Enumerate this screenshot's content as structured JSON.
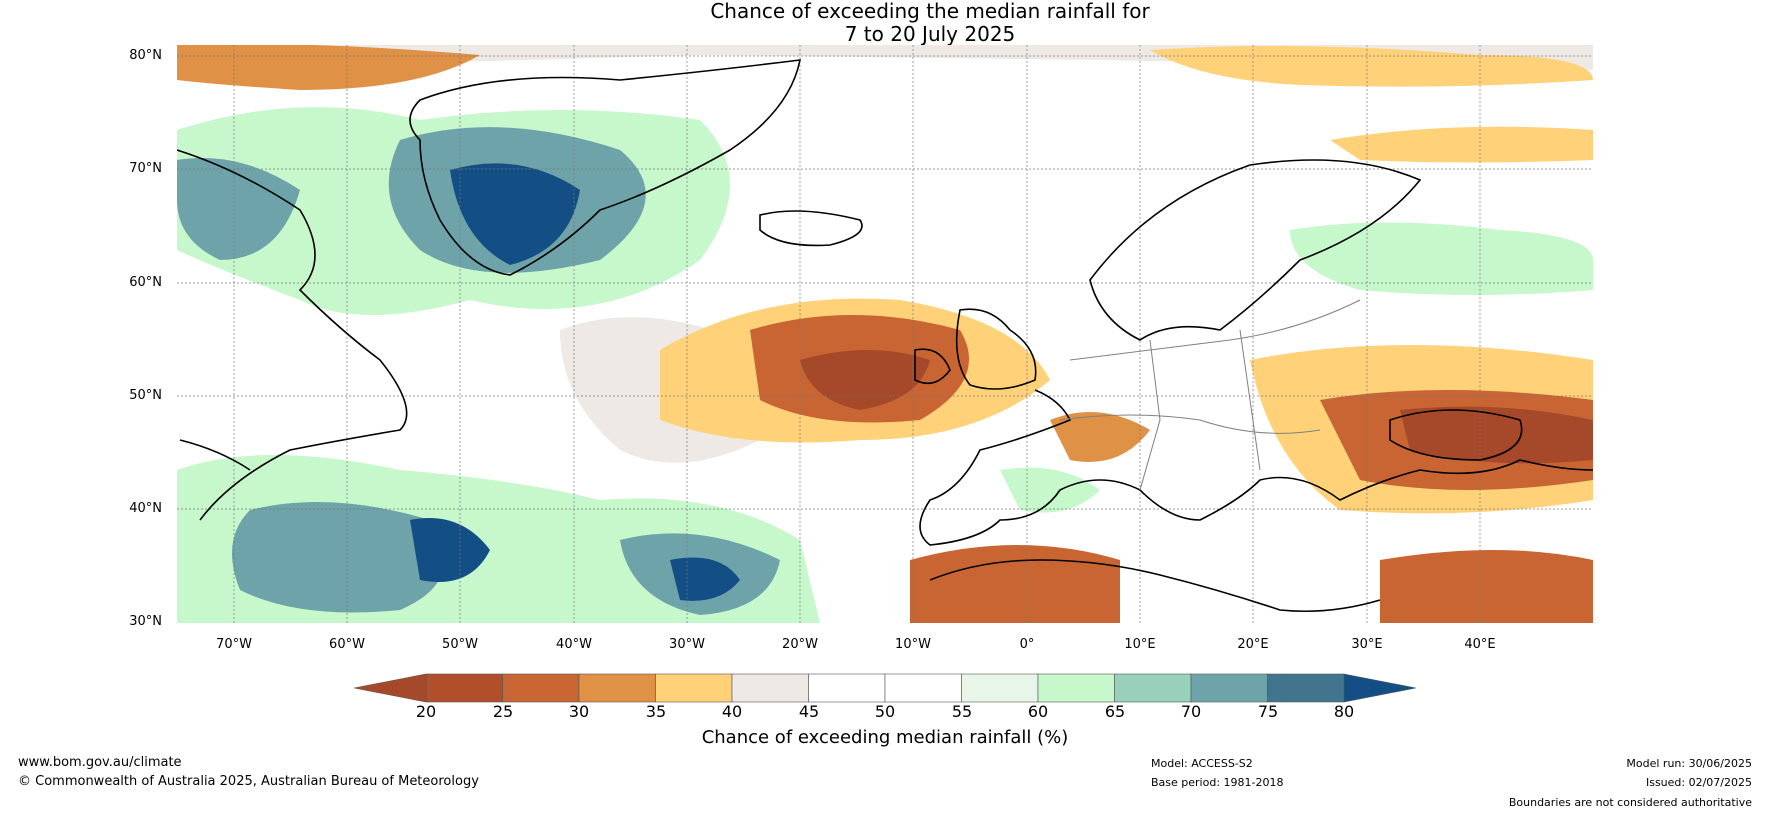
{
  "title": {
    "line1": "Chance of exceeding the median rainfall for",
    "line2": "7 to 20 July 2025"
  },
  "map": {
    "lat_labels": [
      "80°N",
      "70°N",
      "60°N",
      "50°N",
      "40°N",
      "30°N"
    ],
    "lon_labels": [
      "70°W",
      "60°W",
      "50°W",
      "40°W",
      "30°W",
      "20°W",
      "10°W",
      "0°",
      "10°E",
      "20°E",
      "30°E",
      "40°E"
    ],
    "lon_range": [
      -75,
      50
    ],
    "lat_range": [
      30,
      81
    ],
    "ocean_background": "#ffffff",
    "land_border_color": "#000000",
    "internal_border_color": "#808080"
  },
  "colorbar": {
    "ticks": [
      "20",
      "25",
      "30",
      "35",
      "40",
      "45",
      "50",
      "55",
      "60",
      "65",
      "70",
      "75",
      "80"
    ],
    "colors": [
      "#a5492a",
      "#b14f2b",
      "#c96532",
      "#df9146",
      "#ffd27a",
      "#efe9e6",
      "#ffffff",
      "#ffffff",
      "#e7f6e8",
      "#c7f8cc",
      "#99d0bb",
      "#6da3a9",
      "#42758d",
      "#134f85"
    ],
    "label": "Chance of exceeding median rainfall (%)"
  },
  "footer": {
    "website": "www.bom.gov.au/climate",
    "copyright": "© Commonwealth of Australia 2025, Australian Bureau of Meteorology",
    "model": "Model: ACCESS-S2",
    "base_period": "Base period: 1981-2018",
    "model_run": "Model run: 30/06/2025",
    "issued": "Issued: 02/07/2025",
    "disclaimer": "Boundaries are not considered authoritative"
  }
}
